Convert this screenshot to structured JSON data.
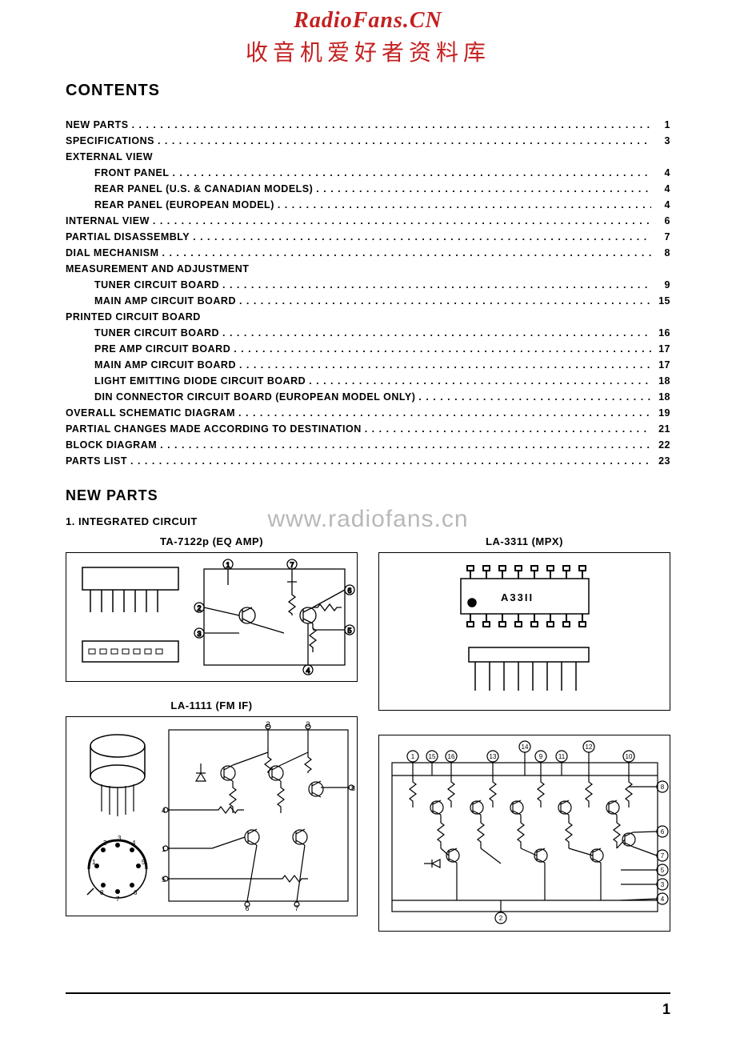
{
  "watermark": {
    "line1": "RadioFans.CN",
    "line2": "收音机爱好者资料库",
    "line1_color": "#c42020",
    "line2_color": "#c42020",
    "mid": "www.radiofans.cn"
  },
  "headings": {
    "contents": "CONTENTS",
    "new_parts": "NEW PARTS",
    "sub1": "1. INTEGRATED CIRCUIT"
  },
  "toc": [
    {
      "label": "NEW PARTS",
      "page": "1",
      "indent": false
    },
    {
      "label": "SPECIFICATIONS",
      "page": "3",
      "indent": false
    },
    {
      "label": "EXTERNAL VIEW",
      "page": "",
      "indent": false
    },
    {
      "label": "FRONT PANEL",
      "page": "4",
      "indent": true
    },
    {
      "label": "REAR PANEL (U.S. & CANADIAN MODELS)",
      "page": "4",
      "indent": true
    },
    {
      "label": "REAR PANEL (EUROPEAN MODEL)",
      "page": "4",
      "indent": true
    },
    {
      "label": "INTERNAL VIEW",
      "page": "6",
      "indent": false
    },
    {
      "label": "PARTIAL DISASSEMBLY",
      "page": "7",
      "indent": false
    },
    {
      "label": "DIAL MECHANISM",
      "page": "8",
      "indent": false
    },
    {
      "label": "MEASUREMENT AND ADJUSTMENT",
      "page": "",
      "indent": false
    },
    {
      "label": "TUNER CIRCUIT BOARD",
      "page": "9",
      "indent": true
    },
    {
      "label": "MAIN AMP CIRCUIT BOARD",
      "page": "15",
      "indent": true
    },
    {
      "label": "PRINTED CIRCUIT BOARD",
      "page": "",
      "indent": false
    },
    {
      "label": "TUNER CIRCUIT BOARD",
      "page": "16",
      "indent": true
    },
    {
      "label": "PRE AMP CIRCUIT BOARD",
      "page": "17",
      "indent": true
    },
    {
      "label": "MAIN AMP CIRCUIT BOARD",
      "page": "17",
      "indent": true
    },
    {
      "label": "LIGHT EMITTING DIODE CIRCUIT BOARD",
      "page": "18",
      "indent": true
    },
    {
      "label": "DIN CONNECTOR CIRCUIT BOARD (EUROPEAN MODEL ONLY)",
      "page": "18",
      "indent": true
    },
    {
      "label": "OVERALL SCHEMATIC DIAGRAM",
      "page": "19",
      "indent": false
    },
    {
      "label": "PARTIAL CHANGES MADE ACCORDING TO DESTINATION",
      "page": "21",
      "indent": false
    },
    {
      "label": "BLOCK DIAGRAM",
      "page": "22",
      "indent": false
    },
    {
      "label": "PARTS LIST",
      "page": "23",
      "indent": false
    }
  ],
  "chips": {
    "ta7122p": {
      "title": "TA-7122p (EQ AMP)"
    },
    "la1111": {
      "title": "LA-1111 (FM IF)"
    },
    "la3311": {
      "title": "LA-3311 (MPX)",
      "marking": "A33II"
    }
  },
  "page_number": "1",
  "style": {
    "text_color": "#000000",
    "background": "#ffffff",
    "diagram_border": "#000000"
  }
}
